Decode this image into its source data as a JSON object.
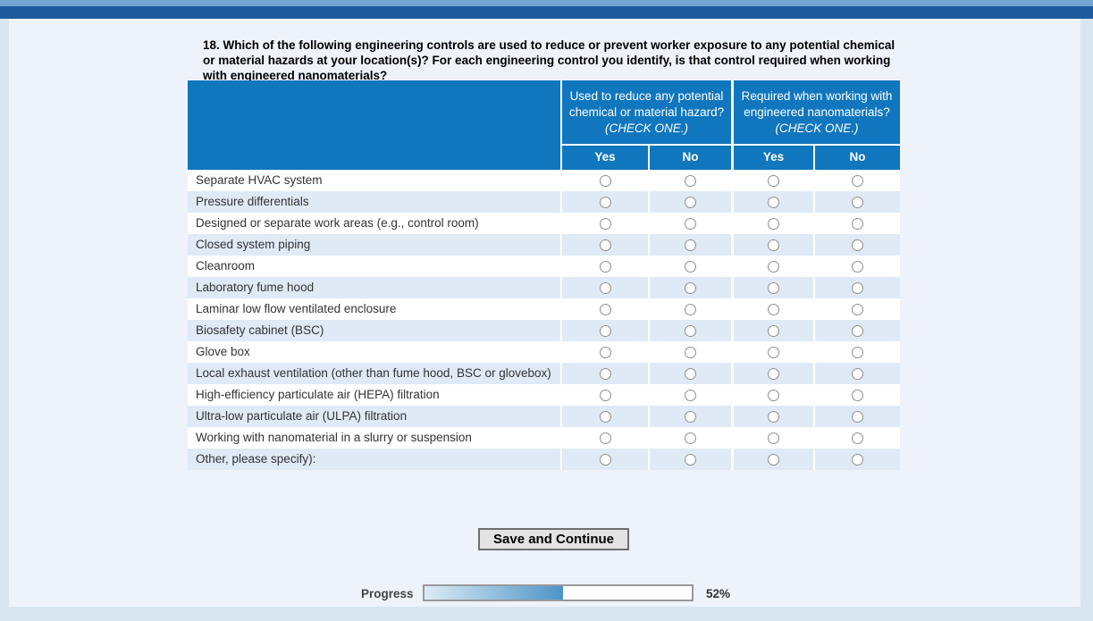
{
  "question": {
    "lines": [
      "18. Which of the following engineering controls are used to reduce or prevent worker exposure to any potential chemical",
      "or material hazards at your location(s)? For each engineering control you identify, is that control required when working",
      "with engineered nanomaterials?"
    ]
  },
  "table": {
    "group_headers": [
      {
        "lines": [
          "Used to reduce any potential",
          "chemical or material hazard?"
        ],
        "instruction": "(CHECK ONE.)"
      },
      {
        "lines": [
          "Required when working with",
          "engineered nanomaterials?"
        ],
        "instruction": "(CHECK ONE.)"
      }
    ],
    "sub_headers": [
      "Yes",
      "No",
      "Yes",
      "No"
    ],
    "rows": [
      "Separate HVAC system",
      "Pressure differentials",
      "Designed or separate work areas (e.g., control room)",
      "Closed system piping",
      "Cleanroom",
      "Laboratory fume hood",
      "Laminar low flow ventilated enclosure",
      "Biosafety cabinet (BSC)",
      "Glove box",
      "Local exhaust ventilation (other than fume hood, BSC or glovebox)",
      "High-efficiency particulate air (HEPA) filtration",
      "Ultra-low particulate air (ULPA) filtration",
      "Working with nanomaterial in a slurry or suspension",
      "Other, please specify):"
    ],
    "radio_states": "all-unselected"
  },
  "buttons": {
    "save_continue": "Save and Continue"
  },
  "progress": {
    "label": "Progress",
    "percent": 52,
    "percent_label": "52%"
  },
  "colors": {
    "header_blue": "#1076be",
    "row_stripe": "#dfeaf6",
    "top_strip": "#74a5d4",
    "banner_blue": "#1f5a9e",
    "page_bg": "#d9e6f2",
    "content_bg": "#eef2fb",
    "progress_fill_start": "#dcebf5",
    "progress_fill_end": "#4e94c7"
  }
}
